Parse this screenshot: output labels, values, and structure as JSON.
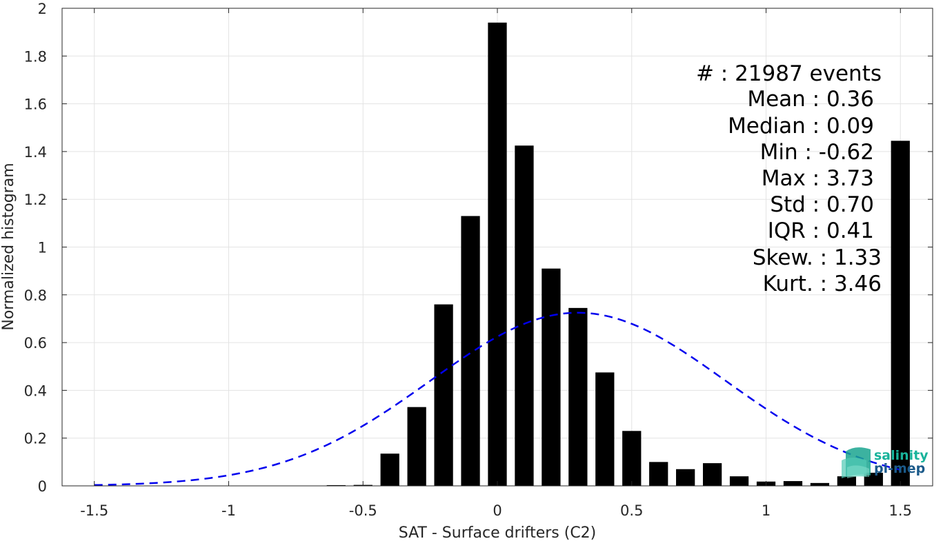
{
  "chart_data": {
    "type": "bar",
    "xlabel": "SAT - Surface drifters (C2)",
    "ylabel": "Normalized histogram",
    "xlim": [
      -1.62,
      1.62
    ],
    "ylim": [
      0,
      2
    ],
    "xticks": [
      -1.5,
      -1,
      -0.5,
      0,
      0.5,
      1,
      1.5
    ],
    "xtick_labels": [
      "-1.5",
      "-1",
      "-0.5",
      "0",
      "0.5",
      "1",
      "1.5"
    ],
    "yticks": [
      0,
      0.2,
      0.4,
      0.6,
      0.8,
      1,
      1.2,
      1.4,
      1.6,
      1.8,
      2
    ],
    "ytick_labels": [
      "0",
      "0.2",
      "0.4",
      "0.6",
      "0.8",
      "1",
      "1.2",
      "1.4",
      "1.6",
      "1.8",
      "2"
    ],
    "grid": true,
    "bar_width": 0.07,
    "bar_color": "#000000",
    "bars": [
      {
        "x": -0.6,
        "value": 0.003
      },
      {
        "x": -0.5,
        "value": 0.004
      },
      {
        "x": -0.4,
        "value": 0.135
      },
      {
        "x": -0.3,
        "value": 0.33
      },
      {
        "x": -0.2,
        "value": 0.76
      },
      {
        "x": -0.1,
        "value": 1.13
      },
      {
        "x": 0.0,
        "value": 1.94
      },
      {
        "x": 0.1,
        "value": 1.425
      },
      {
        "x": 0.2,
        "value": 0.91
      },
      {
        "x": 0.3,
        "value": 0.745
      },
      {
        "x": 0.4,
        "value": 0.475
      },
      {
        "x": 0.5,
        "value": 0.23
      },
      {
        "x": 0.6,
        "value": 0.1
      },
      {
        "x": 0.7,
        "value": 0.07
      },
      {
        "x": 0.8,
        "value": 0.095
      },
      {
        "x": 0.9,
        "value": 0.04
      },
      {
        "x": 1.0,
        "value": 0.018
      },
      {
        "x": 1.1,
        "value": 0.02
      },
      {
        "x": 1.2,
        "value": 0.012
      },
      {
        "x": 1.3,
        "value": 0.04
      },
      {
        "x": 1.4,
        "value": 0.055
      },
      {
        "x": 1.5,
        "value": 1.445
      }
    ],
    "fit_curve": {
      "type": "normal",
      "mean": 0.3,
      "std": 0.55,
      "peak": 0.725,
      "x_range": [
        -1.5,
        1.5
      ],
      "color": "#0000ee",
      "style": "dashed"
    }
  },
  "stats": [
    {
      "label": "#  : 21987 events"
    },
    {
      "label": "Mean : 0.36"
    },
    {
      "label": "Median : 0.09"
    },
    {
      "label": "Min : -0.62"
    },
    {
      "label": "Max : 3.73"
    },
    {
      "label": "Std : 0.70"
    },
    {
      "label": "IQR : 0.41"
    },
    {
      "label": "Skew. : 1.33"
    },
    {
      "label": "Kurt. : 3.46"
    }
  ],
  "logo": {
    "line1": "salinity",
    "line2": "pi-mep",
    "color1": "#19b39b",
    "color2": "#1b5a8a"
  }
}
